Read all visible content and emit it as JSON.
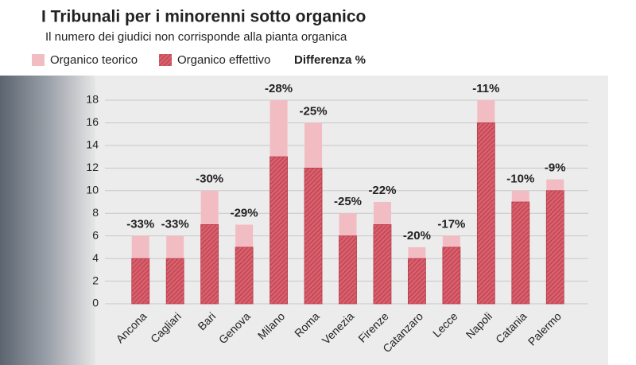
{
  "chart_data": {
    "type": "bar",
    "title": "I Tribunali per i minorenni sotto organico",
    "subtitle": "Il numero dei giudici non corrisponde alla pianta organica",
    "categories": [
      "Ancona",
      "Cagliari",
      "Bari",
      "Genova",
      "Milano",
      "Roma",
      "Venezia",
      "Firenze",
      "Catanzaro",
      "Lecce",
      "Napoli",
      "Catania",
      "Palermo"
    ],
    "series": [
      {
        "name": "Organico teorico",
        "color": "#f2bcc3",
        "values": [
          6,
          6,
          10,
          7,
          18,
          16,
          8,
          9,
          5,
          6,
          18,
          10,
          11
        ]
      },
      {
        "name": "Organico effettivo",
        "color": "#d95f6c",
        "values": [
          4,
          4,
          7,
          5,
          13,
          12,
          6,
          7,
          4,
          5,
          16,
          9,
          10
        ]
      },
      {
        "name": "Differenza %",
        "color": "#8b1a2a",
        "values": [
          -33,
          -33,
          -30,
          -29,
          -28,
          -25,
          -25,
          -22,
          -20,
          -17,
          -11,
          -10,
          -9
        ],
        "value_labels": [
          "-33%",
          "-33%",
          "-30%",
          "-29%",
          "-28%",
          "-25%",
          "-25%",
          "-22%",
          "-20%",
          "-17%",
          "-11%",
          "-10%",
          "-9%"
        ]
      }
    ],
    "ylim": [
      0,
      18
    ],
    "yticks": [
      0,
      2,
      4,
      6,
      8,
      10,
      12,
      14,
      16,
      18
    ],
    "grid": true
  }
}
